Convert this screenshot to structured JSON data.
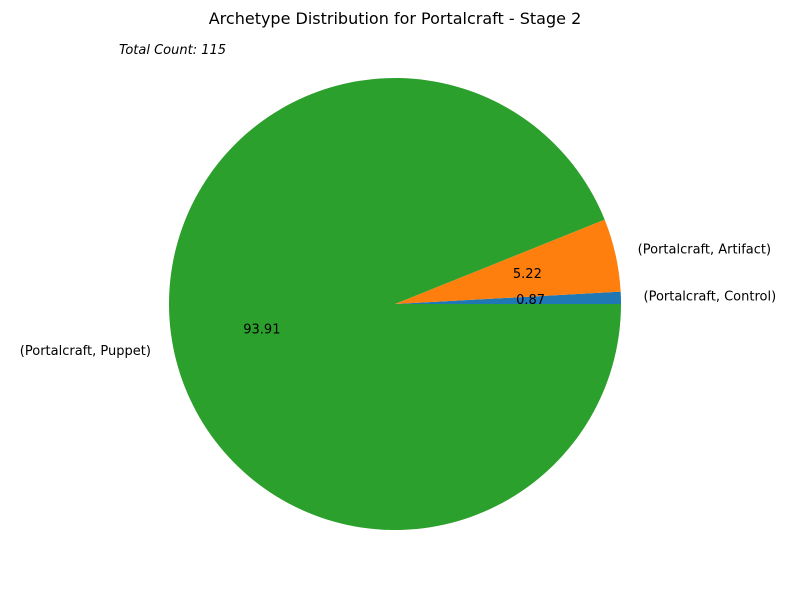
{
  "chart_data": {
    "type": "pie",
    "title": "Archetype Distribution for Portalcraft - Stage 2",
    "annotation": "Total Count: 115",
    "slices": [
      {
        "label": "(Portalcraft, Control)",
        "value": 0.87,
        "pct_label": "0.87",
        "color": "#1f77b4"
      },
      {
        "label": "(Portalcraft, Artifact)",
        "value": 5.22,
        "pct_label": "5.22",
        "color": "#ff7f0e"
      },
      {
        "label": "(Portalcraft, Puppet)",
        "value": 93.91,
        "pct_label": "93.91",
        "color": "#2ca02c"
      }
    ],
    "start_angle_deg": 0,
    "direction": "counterclockwise"
  }
}
